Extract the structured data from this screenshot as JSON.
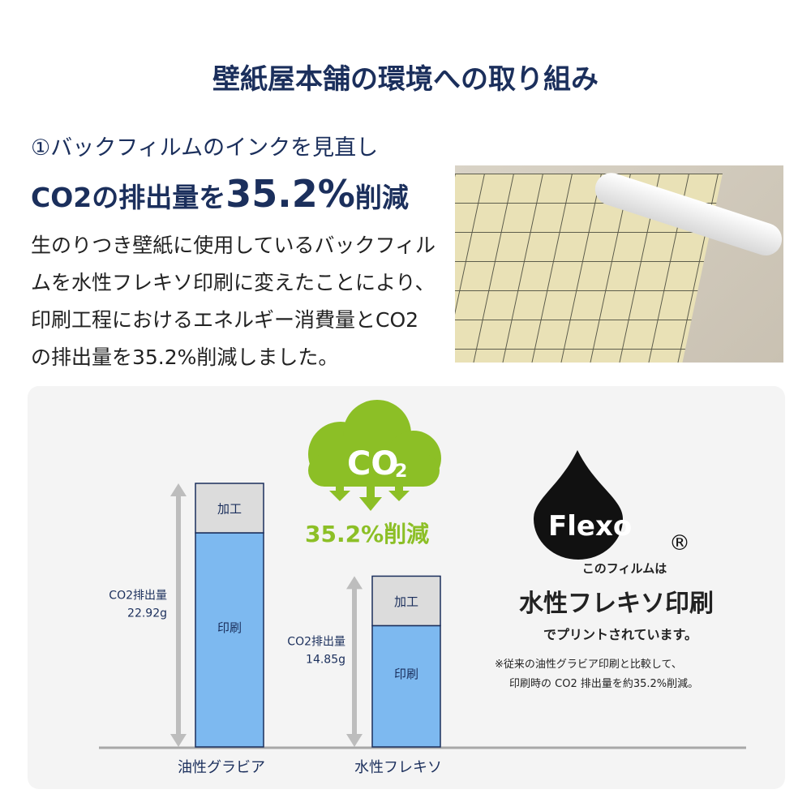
{
  "header": {
    "title": "壁紙屋本舗の環境への取り組み"
  },
  "section": {
    "subtitle": "①バックフィルムのインクを見直し",
    "headline_pre": "CO2の排出量を",
    "headline_num": "35.2%",
    "headline_post": "削減",
    "body": "生のりつき壁紙に使用しているバックフィルムを水性フレキソ印刷に変えたことにより、印刷工程におけるエネルギー消費量とCO2の排出量を35.2%削減しました。"
  },
  "badge": {
    "cloud_text": "CO",
    "cloud_sub": "2",
    "reduction": "35.2%削減",
    "color": "#8cbf26"
  },
  "flexo": {
    "logo": "Flexo",
    "registered": "®",
    "line1": "このフィルムは",
    "line2": "水性フレキソ印刷",
    "line3": "でプリントされています。",
    "note1": "※従来の油性グラビア印刷と比較して、",
    "note2": "印刷時の CO2 排出量を約35.2%削減。"
  },
  "chart_data": {
    "type": "bar",
    "stacked": true,
    "categories": [
      "油性グラビア",
      "水性フレキソ"
    ],
    "segment_labels": [
      "印刷",
      "加工"
    ],
    "totals": [
      22.92,
      14.85
    ],
    "total_labels": [
      {
        "label": "CO2排出量",
        "value": "22.92g"
      },
      {
        "label": "CO2排出量",
        "value": "14.85g"
      }
    ],
    "colors": {
      "印刷": "#7db9f0",
      "加工": "#dcdcdc",
      "outline": "#1b2f5c",
      "arrow": "#bdbdbd"
    }
  }
}
